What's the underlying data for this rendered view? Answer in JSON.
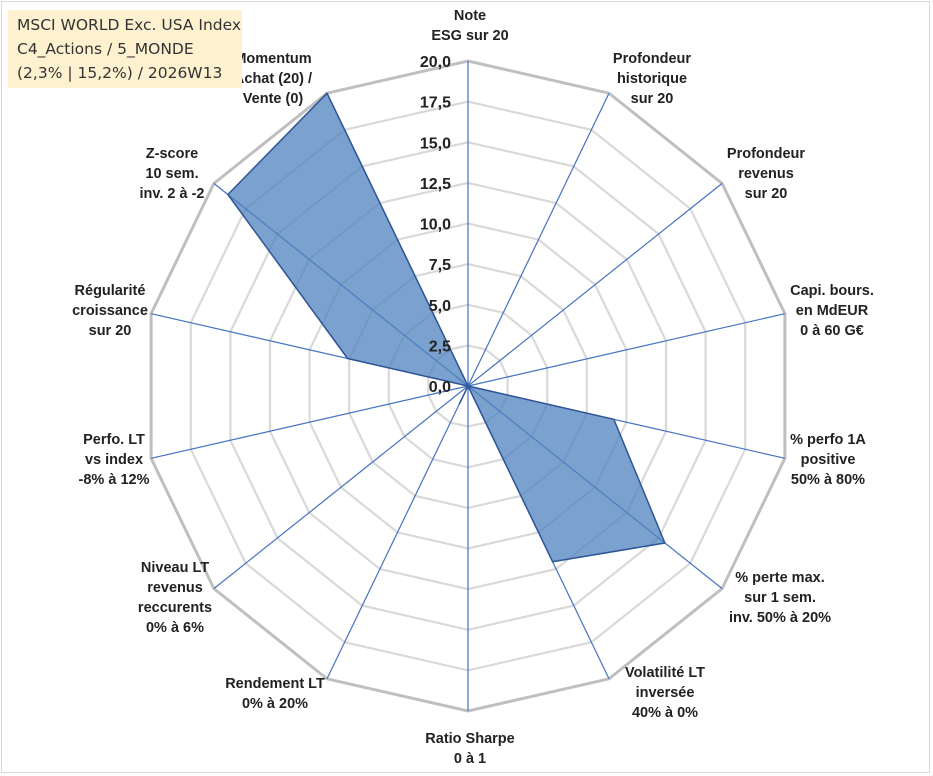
{
  "title_lines": [
    "MSCI WORLD Exc. USA Index",
    "C4_Actions / 5_MONDE",
    "(2,3% | 15,2%) / 2026W13"
  ],
  "chart_data": {
    "type": "radar",
    "rmax": 20,
    "ticks": [
      "0,0",
      "2,5",
      "5,0",
      "7,5",
      "10,0",
      "12,5",
      "15,0",
      "17,5",
      "20,0"
    ],
    "axes": [
      {
        "label": [
          "Note",
          "ESG sur 20"
        ]
      },
      {
        "label": [
          "Profondeur",
          "historique",
          "sur 20"
        ]
      },
      {
        "label": [
          "Profondeur",
          "revenus",
          "sur 20"
        ]
      },
      {
        "label": [
          "Capi. bours.",
          "en MdEUR",
          "0 à 60 G€"
        ]
      },
      {
        "label": [
          "% perfo 1A",
          "positive",
          "50% à 80%"
        ]
      },
      {
        "label": [
          "% perte max.",
          "sur 1 sem.",
          "inv. 50% à 20%"
        ]
      },
      {
        "label": [
          "Volatilité LT",
          "inversée",
          "40% à 0%"
        ]
      },
      {
        "label": [
          "Ratio Sharpe",
          "0 à 1"
        ]
      },
      {
        "label": [
          "Rendement LT",
          "0% à 20%"
        ]
      },
      {
        "label": [
          "Niveau LT",
          "revenus",
          "reccurents",
          "0% à 6%"
        ]
      },
      {
        "label": [
          "Perfo. LT",
          "vs index",
          "-8% à 12%"
        ]
      },
      {
        "label": [
          "Régularité",
          "croissance",
          "sur 20"
        ]
      },
      {
        "label": [
          "Z-score",
          "10 sem.",
          "inv. 2 à -2"
        ]
      },
      {
        "label": [
          "Momentum",
          "Achat (20) /",
          "Vente (0)"
        ]
      }
    ],
    "series": [
      {
        "name": "MSCI WORLD Exc. USA Index",
        "values": [
          0,
          0,
          0,
          0,
          9.2,
          15.5,
          12.0,
          0,
          1.2,
          0,
          0,
          7.6,
          18.9,
          20.0
        ],
        "color": "#4f81bd"
      }
    ]
  }
}
